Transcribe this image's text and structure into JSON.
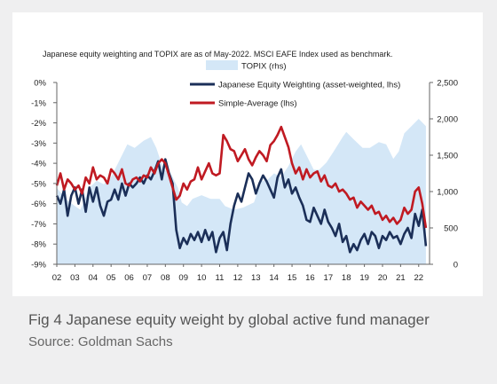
{
  "caption": {
    "title": "Fig 4 Japanese equity weight by global active fund manager",
    "source": "Source: Goldman Sachs"
  },
  "colors": {
    "topix_fill": "#d4e7f7",
    "weighting_line": "#1b2f58",
    "simple_line": "#c01a22",
    "background": "#efeff0"
  },
  "chart_data": {
    "type": "line",
    "note": "Japanese equity weighting and TOPIX are as of May-2022. MSCI EAFE Index used as benchmark.",
    "x_tick_labels": [
      "02",
      "03",
      "04",
      "05",
      "06",
      "07",
      "08",
      "09",
      "10",
      "11",
      "12",
      "13",
      "14",
      "15",
      "16",
      "17",
      "18",
      "19",
      "20",
      "21",
      "22"
    ],
    "x_range": [
      2002.0,
      2022.6
    ],
    "y_left": {
      "tick_labels": [
        "0%",
        "-1%",
        "-2%",
        "-3%",
        "-4%",
        "-5%",
        "-6%",
        "-7%",
        "-8%",
        "-9%"
      ],
      "range": [
        -9,
        0
      ]
    },
    "y_right": {
      "tick_labels": [
        "2,500",
        "2,000",
        "1,500",
        "1,000",
        "500",
        "0"
      ],
      "range": [
        0,
        2500
      ]
    },
    "legend_position": "top",
    "grid": false,
    "series": [
      {
        "name": "TOPIX (rhs)",
        "axis": "right",
        "style": "area",
        "x": [
          2002.0,
          2002.5,
          2003.0,
          2003.3,
          2003.8,
          2004.2,
          2004.6,
          2005.0,
          2005.5,
          2005.9,
          2006.3,
          2006.8,
          2007.2,
          2007.5,
          2007.9,
          2008.3,
          2008.7,
          2008.9,
          2009.2,
          2009.5,
          2010.0,
          2010.5,
          2011.0,
          2011.3,
          2011.8,
          2012.3,
          2012.9,
          2013.3,
          2013.6,
          2014.0,
          2014.4,
          2014.8,
          2015.2,
          2015.5,
          2015.9,
          2016.2,
          2016.5,
          2016.9,
          2017.3,
          2017.8,
          2018.0,
          2018.4,
          2018.9,
          2019.3,
          2019.8,
          2020.2,
          2020.6,
          2020.9,
          2021.2,
          2021.6,
          2022.0,
          2022.4
        ],
        "y": [
          1050,
          900,
          800,
          750,
          1050,
          1150,
          1100,
          1200,
          1450,
          1650,
          1600,
          1700,
          1750,
          1600,
          1300,
          1250,
          1050,
          850,
          800,
          900,
          950,
          900,
          900,
          800,
          750,
          780,
          850,
          1150,
          1150,
          1250,
          1200,
          1350,
          1550,
          1650,
          1450,
          1300,
          1300,
          1400,
          1550,
          1750,
          1820,
          1720,
          1600,
          1600,
          1680,
          1650,
          1450,
          1550,
          1800,
          1900,
          2000,
          1900
        ]
      },
      {
        "name": "Japanese Equity Weighting (asset-weighted, lhs)",
        "axis": "left",
        "style": "line",
        "x": [
          2002.0,
          2002.2,
          2002.4,
          2002.6,
          2002.8,
          2003.0,
          2003.2,
          2003.4,
          2003.6,
          2003.8,
          2004.0,
          2004.2,
          2004.4,
          2004.6,
          2004.8,
          2005.0,
          2005.2,
          2005.4,
          2005.6,
          2005.8,
          2006.0,
          2006.2,
          2006.4,
          2006.6,
          2006.8,
          2007.0,
          2007.2,
          2007.4,
          2007.6,
          2007.8,
          2008.0,
          2008.2,
          2008.4,
          2008.6,
          2008.8,
          2009.0,
          2009.2,
          2009.4,
          2009.6,
          2009.8,
          2010.0,
          2010.2,
          2010.4,
          2010.6,
          2010.8,
          2011.0,
          2011.2,
          2011.4,
          2011.6,
          2011.8,
          2012.0,
          2012.2,
          2012.4,
          2012.6,
          2012.8,
          2013.0,
          2013.2,
          2013.4,
          2013.6,
          2013.8,
          2014.0,
          2014.2,
          2014.4,
          2014.6,
          2014.8,
          2015.0,
          2015.2,
          2015.4,
          2015.6,
          2015.8,
          2016.0,
          2016.2,
          2016.4,
          2016.6,
          2016.8,
          2017.0,
          2017.2,
          2017.4,
          2017.6,
          2017.8,
          2018.0,
          2018.2,
          2018.4,
          2018.6,
          2018.8,
          2019.0,
          2019.2,
          2019.4,
          2019.6,
          2019.8,
          2020.0,
          2020.2,
          2020.4,
          2020.6,
          2020.8,
          2021.0,
          2021.2,
          2021.4,
          2021.6,
          2021.8,
          2022.0,
          2022.2,
          2022.4
        ],
        "y": [
          -5.6,
          -6.0,
          -5.3,
          -6.6,
          -5.6,
          -5.2,
          -6.0,
          -5.3,
          -6.4,
          -5.2,
          -5.9,
          -5.2,
          -6.1,
          -6.6,
          -5.9,
          -5.8,
          -5.3,
          -5.8,
          -5.0,
          -5.6,
          -5.0,
          -5.2,
          -5.0,
          -4.7,
          -5.0,
          -4.6,
          -4.8,
          -4.4,
          -3.9,
          -4.8,
          -3.8,
          -4.5,
          -5.0,
          -7.3,
          -8.2,
          -7.7,
          -8.0,
          -7.5,
          -7.8,
          -7.4,
          -7.9,
          -7.3,
          -7.8,
          -7.4,
          -8.4,
          -7.7,
          -7.4,
          -8.3,
          -7.0,
          -6.1,
          -5.5,
          -5.9,
          -5.2,
          -4.5,
          -4.8,
          -5.5,
          -5.0,
          -4.6,
          -4.9,
          -5.3,
          -5.7,
          -4.7,
          -4.3,
          -5.2,
          -4.8,
          -5.5,
          -5.2,
          -5.7,
          -6.1,
          -6.8,
          -6.9,
          -6.2,
          -6.6,
          -7.0,
          -6.3,
          -6.9,
          -7.2,
          -7.6,
          -7.0,
          -7.9,
          -7.6,
          -8.4,
          -8.0,
          -8.3,
          -7.8,
          -7.5,
          -8.0,
          -7.4,
          -7.6,
          -8.2,
          -7.6,
          -7.8,
          -7.4,
          -7.7,
          -7.6,
          -8.0,
          -7.5,
          -7.2,
          -7.7,
          -6.5,
          -7.1,
          -6.3,
          -8.1
        ]
      },
      {
        "name": "Simple-Average (lhs)",
        "axis": "left",
        "style": "line",
        "x": [
          2002.0,
          2002.2,
          2002.4,
          2002.6,
          2002.8,
          2003.0,
          2003.2,
          2003.4,
          2003.6,
          2003.8,
          2004.0,
          2004.2,
          2004.4,
          2004.6,
          2004.8,
          2005.0,
          2005.2,
          2005.4,
          2005.6,
          2005.8,
          2006.0,
          2006.2,
          2006.4,
          2006.6,
          2006.8,
          2007.0,
          2007.2,
          2007.4,
          2007.6,
          2007.8,
          2008.0,
          2008.2,
          2008.4,
          2008.6,
          2008.8,
          2009.0,
          2009.2,
          2009.4,
          2009.6,
          2009.8,
          2010.0,
          2010.2,
          2010.4,
          2010.6,
          2010.8,
          2011.0,
          2011.2,
          2011.4,
          2011.6,
          2011.8,
          2012.0,
          2012.2,
          2012.4,
          2012.6,
          2012.8,
          2013.0,
          2013.2,
          2013.4,
          2013.6,
          2013.8,
          2014.0,
          2014.2,
          2014.4,
          2014.6,
          2014.8,
          2015.0,
          2015.2,
          2015.4,
          2015.6,
          2015.8,
          2016.0,
          2016.2,
          2016.4,
          2016.6,
          2016.8,
          2017.0,
          2017.2,
          2017.4,
          2017.6,
          2017.8,
          2018.0,
          2018.2,
          2018.4,
          2018.6,
          2018.8,
          2019.0,
          2019.2,
          2019.4,
          2019.6,
          2019.8,
          2020.0,
          2020.2,
          2020.4,
          2020.6,
          2020.8,
          2021.0,
          2021.2,
          2021.4,
          2021.6,
          2021.8,
          2022.0,
          2022.2,
          2022.4
        ],
        "y": [
          -5.1,
          -4.5,
          -5.3,
          -4.8,
          -5.0,
          -5.3,
          -5.1,
          -5.5,
          -4.7,
          -5.0,
          -4.2,
          -4.8,
          -4.6,
          -4.7,
          -5.0,
          -4.3,
          -4.5,
          -4.8,
          -4.3,
          -5.0,
          -5.1,
          -4.8,
          -4.7,
          -4.9,
          -4.6,
          -4.7,
          -4.2,
          -4.5,
          -4.0,
          -3.8,
          -4.0,
          -4.6,
          -5.2,
          -5.8,
          -5.6,
          -5.0,
          -5.3,
          -4.9,
          -4.8,
          -4.2,
          -4.8,
          -4.4,
          -4.0,
          -4.5,
          -4.6,
          -4.5,
          -2.6,
          -2.9,
          -3.3,
          -3.4,
          -3.9,
          -3.6,
          -3.3,
          -3.8,
          -4.1,
          -3.7,
          -3.4,
          -3.6,
          -3.9,
          -3.1,
          -2.9,
          -2.6,
          -2.2,
          -2.7,
          -3.2,
          -4.0,
          -4.5,
          -4.2,
          -4.8,
          -4.3,
          -4.7,
          -4.5,
          -4.4,
          -4.9,
          -4.6,
          -5.1,
          -5.2,
          -5.0,
          -5.4,
          -5.3,
          -5.5,
          -5.8,
          -5.7,
          -6.2,
          -5.9,
          -6.1,
          -6.3,
          -6.1,
          -6.5,
          -6.4,
          -6.8,
          -6.6,
          -6.9,
          -6.7,
          -7.0,
          -6.8,
          -6.2,
          -6.5,
          -6.3,
          -5.4,
          -5.2,
          -6.0,
          -7.2
        ]
      }
    ]
  }
}
